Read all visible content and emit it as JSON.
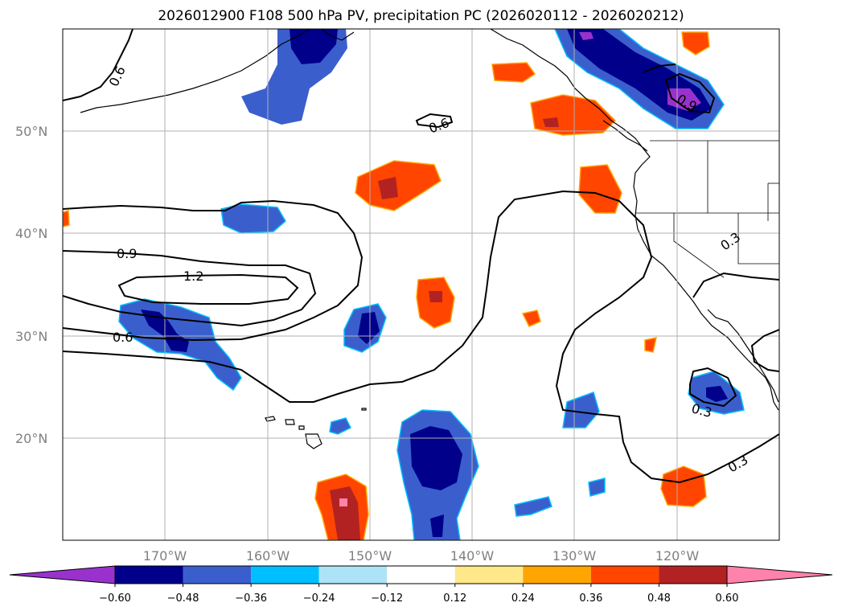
{
  "title": "2026012900 F108 500 hPa PV, precipitation PC (2026020112 - 2026020212)",
  "latitude_labels": [
    "50°N",
    "40°N",
    "30°N",
    "20°N"
  ],
  "longitude_labels": [
    "170°W",
    "160°W",
    "150°W",
    "140°W",
    "130°W",
    "120°W"
  ],
  "contour_labels": [
    "0.6",
    "0.6",
    "0.9",
    "1.2",
    "0.6",
    "0.3",
    "0.3",
    "0.3",
    "0.9"
  ],
  "colorbar": {
    "ticks": [
      "−0.60",
      "−0.48",
      "−0.36",
      "−0.24",
      "−0.12",
      "0.12",
      "0.24",
      "0.36",
      "0.48",
      "0.60"
    ],
    "colors": [
      "#9932CC",
      "#00008B",
      "#3A5FCD",
      "#00BFFF",
      "#ADE3F7",
      "#FFFFFF",
      "#FFE88A",
      "#FFA500",
      "#FF4500",
      "#B22222",
      "#FF82AB"
    ]
  },
  "colors": {
    "strong_negative": "#00008B",
    "negative": "#3A5FCD",
    "weak_negative": "#00BFFF",
    "positive": "#FF4500",
    "strong_positive": "#B22222",
    "extreme_positive": "#FF82AB",
    "extreme_negative": "#9932CC",
    "grid": "#B0B0B0"
  }
}
